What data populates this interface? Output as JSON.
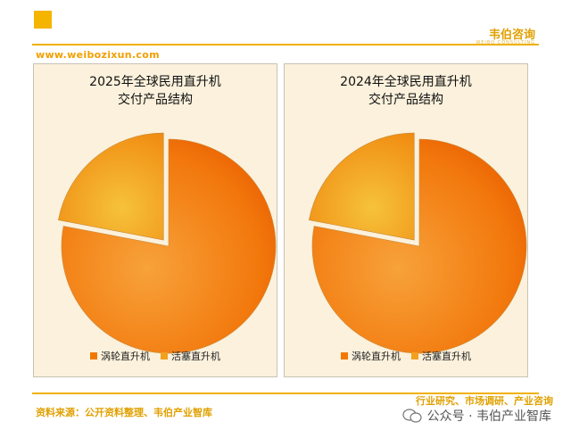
{
  "header": {
    "brand": "韦伯咨询",
    "brand_sub": "WEIBO CONSULTING",
    "url": "www.weibozixun.com"
  },
  "footer": {
    "source": "资料来源：公开资料整理、韦伯产业智库",
    "tagline": "行业研究、市场调研、产业咨询",
    "wechat": "公众号 · 韦伯产业智库"
  },
  "colors": {
    "accent": "#f0b000",
    "turbo": "#f07800",
    "piston": "#f2a020",
    "panel_bg": "#fbf1dc"
  },
  "chart_data": [
    {
      "type": "pie",
      "title_line1": "2025年全球民用直升机",
      "title_line2": "交付产品结构",
      "legend_position": "bottom",
      "series": [
        {
          "name": "涡轮直升机",
          "value": 78
        },
        {
          "name": "活塞直升机",
          "value": 22
        }
      ]
    },
    {
      "type": "pie",
      "title_line1": "2024年全球民用直升机",
      "title_line2": "交付产品结构",
      "legend_position": "bottom",
      "series": [
        {
          "name": "涡轮直升机",
          "value": 78
        },
        {
          "name": "活塞直升机",
          "value": 22
        }
      ]
    }
  ]
}
